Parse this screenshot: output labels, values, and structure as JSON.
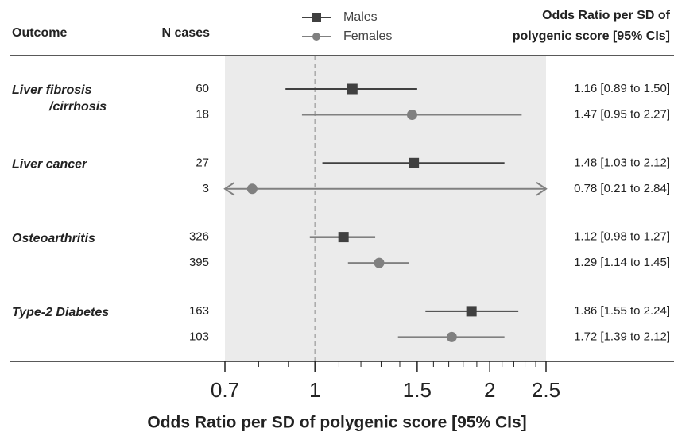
{
  "chart_data": {
    "type": "forest",
    "columns": {
      "outcome": "Outcome",
      "n": "N cases",
      "estimate": [
        "Odds Ratio per SD of",
        "polygenic score [95% CIs]"
      ]
    },
    "x_label": "Odds Ratio per SD of polygenic score [95% CIs]",
    "x_log": true,
    "xlim": [
      0.7,
      2.5
    ],
    "xticks": [
      0.7,
      1,
      1.5,
      2,
      2.5
    ],
    "xminor_ticks": [
      0.8,
      0.9,
      1.1,
      1.2,
      1.3,
      1.4,
      1.6,
      1.7,
      1.8,
      1.9,
      2.1,
      2.2,
      2.3,
      2.4
    ],
    "reference": 1,
    "series": [
      {
        "name": "Males",
        "color": "#404040",
        "marker": "square"
      },
      {
        "name": "Females",
        "color": "#808080",
        "marker": "circle"
      }
    ],
    "groups": [
      {
        "label": [
          "Liver fibrosis",
          "/cirrhosis"
        ],
        "rows": [
          {
            "n": 60,
            "or": 1.16,
            "ci": [
              0.89,
              1.5
            ],
            "label": "1.16 [0.89 to 1.50]"
          },
          {
            "n": 18,
            "or": 1.47,
            "ci": [
              0.95,
              2.27
            ],
            "label": "1.47 [0.95 to 2.27]"
          }
        ]
      },
      {
        "label": [
          "Liver cancer"
        ],
        "rows": [
          {
            "n": 27,
            "or": 1.48,
            "ci": [
              1.03,
              2.12
            ],
            "label": "1.48 [1.03 to 2.12]"
          },
          {
            "n": 3,
            "or": 0.78,
            "ci": [
              0.21,
              2.84
            ],
            "label": "0.78 [0.21 to 2.84]"
          }
        ]
      },
      {
        "label": [
          "Osteoarthritis"
        ],
        "rows": [
          {
            "n": 326,
            "or": 1.12,
            "ci": [
              0.98,
              1.27
            ],
            "label": "1.12 [0.98 to 1.27]"
          },
          {
            "n": 395,
            "or": 1.29,
            "ci": [
              1.14,
              1.45
            ],
            "label": "1.29 [1.14 to 1.45]"
          }
        ]
      },
      {
        "label": [
          "Type-2 Diabetes"
        ],
        "rows": [
          {
            "n": 163,
            "or": 1.86,
            "ci": [
              1.55,
              2.24
            ],
            "label": "1.86 [1.55 to 2.24]"
          },
          {
            "n": 103,
            "or": 1.72,
            "ci": [
              1.39,
              2.12
            ],
            "label": "1.72 [1.39 to 2.12]"
          }
        ]
      }
    ]
  }
}
